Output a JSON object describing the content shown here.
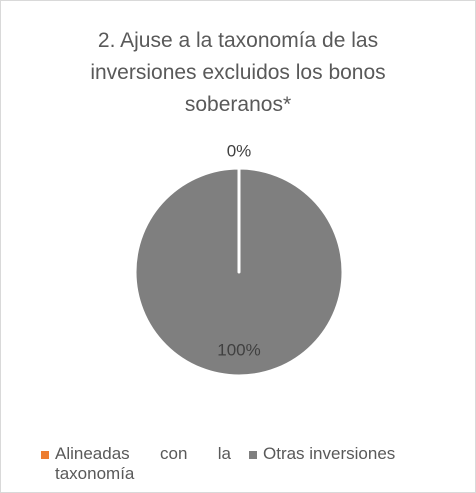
{
  "chart_data": {
    "type": "pie",
    "title": "2. Ajuse a la taxonomía de las inversiones excluidos los bonos soberanos*",
    "categories": [
      "Alineadas con la taxonomía",
      "Otras inversiones"
    ],
    "values": [
      0,
      100
    ],
    "value_labels": [
      "0%",
      "100%"
    ],
    "colors": [
      "#ED7D31",
      "#7F7F7F"
    ],
    "legend": "bottom"
  }
}
